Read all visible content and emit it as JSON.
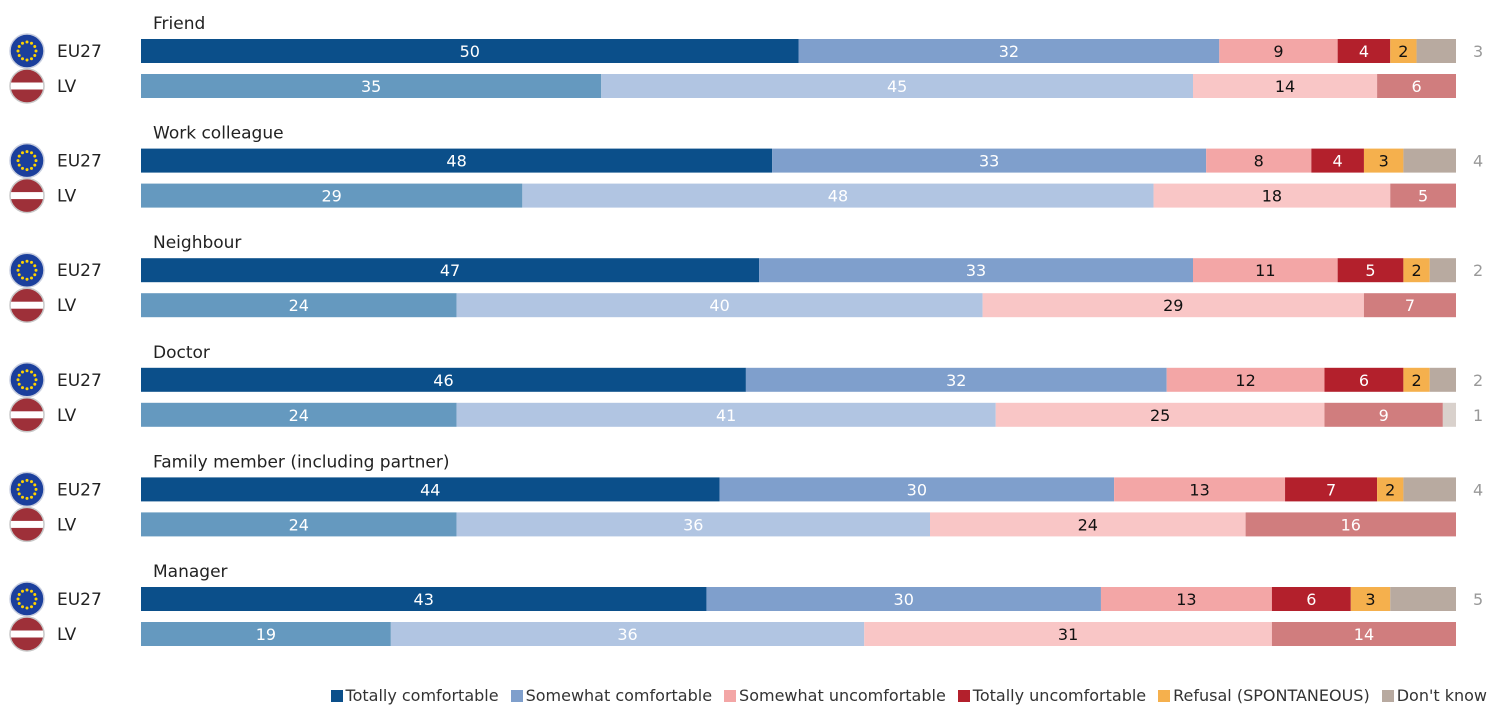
{
  "chart_data": {
    "type": "bar",
    "orientation": "horizontal",
    "stacked": true,
    "unit": "%",
    "series": [
      {
        "name": "Totally comfortable",
        "color": "#0b4f8a",
        "color_lv": "#6599bf"
      },
      {
        "name": "Somewhat comfortable",
        "color": "#7f9fcc",
        "color_lv": "#b1c5e2"
      },
      {
        "name": "Somewhat uncomfortable",
        "color": "#f3a6a6",
        "color_lv": "#f9c6c6"
      },
      {
        "name": "Totally uncomfortable",
        "color": "#b3202c",
        "color_lv": "#d07d7e"
      },
      {
        "name": "Refusal (SPONTANEOUS)",
        "color": "#f5b04d",
        "color_lv": "#f5b04d"
      },
      {
        "name": "Don't know",
        "color": "#b8aaa0",
        "color_lv": "#d9d1cc"
      }
    ],
    "groups": [
      {
        "label": "Friend",
        "rows": [
          {
            "country": "EU27",
            "values": [
              50,
              32,
              9,
              4,
              2,
              3
            ]
          },
          {
            "country": "LV",
            "values": [
              35,
              45,
              14,
              6,
              0,
              0
            ]
          }
        ]
      },
      {
        "label": "Work colleague",
        "rows": [
          {
            "country": "EU27",
            "values": [
              48,
              33,
              8,
              4,
              3,
              4
            ]
          },
          {
            "country": "LV",
            "values": [
              29,
              48,
              18,
              5,
              0,
              0
            ]
          }
        ]
      },
      {
        "label": "Neighbour",
        "rows": [
          {
            "country": "EU27",
            "values": [
              47,
              33,
              11,
              5,
              2,
              2
            ]
          },
          {
            "country": "LV",
            "values": [
              24,
              40,
              29,
              7,
              0,
              0
            ]
          }
        ]
      },
      {
        "label": "Doctor",
        "rows": [
          {
            "country": "EU27",
            "values": [
              46,
              32,
              12,
              6,
              2,
              2
            ]
          },
          {
            "country": "LV",
            "values": [
              24,
              41,
              25,
              9,
              0,
              1
            ]
          }
        ]
      },
      {
        "label": "Family member (including partner)",
        "rows": [
          {
            "country": "EU27",
            "values": [
              44,
              30,
              13,
              7,
              2,
              4
            ]
          },
          {
            "country": "LV",
            "values": [
              24,
              36,
              24,
              16,
              0,
              0
            ]
          }
        ]
      },
      {
        "label": "Manager",
        "rows": [
          {
            "country": "EU27",
            "values": [
              43,
              30,
              13,
              6,
              3,
              5
            ]
          },
          {
            "country": "LV",
            "values": [
              19,
              36,
              31,
              14,
              0,
              0
            ]
          }
        ]
      }
    ]
  }
}
